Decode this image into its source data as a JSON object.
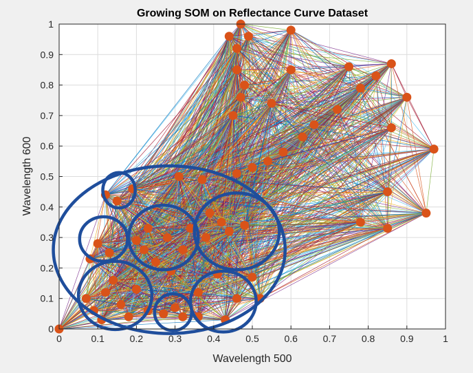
{
  "chart_data": {
    "type": "scatter",
    "title": "Growing SOM on Reflectance Curve Dataset",
    "xlabel": "Wavelength 500",
    "ylabel": "Wavelength 600",
    "xlim": [
      0,
      1
    ],
    "ylim": [
      0,
      1
    ],
    "xticks": [
      "0",
      "0.1",
      "0.2",
      "0.3",
      "0.4",
      "0.5",
      "0.6",
      "0.7",
      "0.8",
      "0.9",
      "1"
    ],
    "yticks": [
      "0",
      "0.1",
      "0.2",
      "0.3",
      "0.4",
      "0.5",
      "0.6",
      "0.7",
      "0.8",
      "0.9",
      "1"
    ],
    "grid": true,
    "marker_color": "#d95319",
    "highlight_color": "#1f4e9c",
    "series": [
      {
        "points": [
          [
            0.0,
            0.0
          ],
          [
            0.47,
            1.0
          ],
          [
            0.44,
            0.96
          ],
          [
            0.49,
            0.96
          ],
          [
            0.6,
            0.98
          ],
          [
            0.46,
            0.92
          ],
          [
            0.46,
            0.85
          ],
          [
            0.48,
            0.8
          ],
          [
            0.47,
            0.76
          ],
          [
            0.6,
            0.85
          ],
          [
            0.75,
            0.86
          ],
          [
            0.82,
            0.83
          ],
          [
            0.86,
            0.87
          ],
          [
            0.9,
            0.76
          ],
          [
            0.78,
            0.79
          ],
          [
            0.72,
            0.72
          ],
          [
            0.66,
            0.67
          ],
          [
            0.63,
            0.63
          ],
          [
            0.58,
            0.58
          ],
          [
            0.54,
            0.55
          ],
          [
            0.5,
            0.53
          ],
          [
            0.46,
            0.51
          ],
          [
            0.97,
            0.59
          ],
          [
            0.86,
            0.66
          ],
          [
            0.85,
            0.45
          ],
          [
            0.95,
            0.38
          ],
          [
            0.85,
            0.33
          ],
          [
            0.78,
            0.35
          ],
          [
            0.55,
            0.74
          ],
          [
            0.45,
            0.7
          ],
          [
            0.37,
            0.49
          ],
          [
            0.31,
            0.5
          ],
          [
            0.19,
            0.46
          ],
          [
            0.12,
            0.44
          ],
          [
            0.15,
            0.42
          ],
          [
            0.1,
            0.28
          ],
          [
            0.13,
            0.25
          ],
          [
            0.08,
            0.23
          ],
          [
            0.23,
            0.33
          ],
          [
            0.28,
            0.3
          ],
          [
            0.2,
            0.29
          ],
          [
            0.25,
            0.22
          ],
          [
            0.32,
            0.26
          ],
          [
            0.39,
            0.38
          ],
          [
            0.42,
            0.35
          ],
          [
            0.44,
            0.32
          ],
          [
            0.38,
            0.3
          ],
          [
            0.48,
            0.34
          ],
          [
            0.41,
            0.18
          ],
          [
            0.46,
            0.1
          ],
          [
            0.36,
            0.12
          ],
          [
            0.3,
            0.07
          ],
          [
            0.27,
            0.05
          ],
          [
            0.32,
            0.04
          ],
          [
            0.07,
            0.1
          ],
          [
            0.12,
            0.12
          ],
          [
            0.16,
            0.08
          ],
          [
            0.2,
            0.13
          ],
          [
            0.14,
            0.16
          ],
          [
            0.09,
            0.06
          ],
          [
            0.11,
            0.03
          ],
          [
            0.18,
            0.04
          ],
          [
            0.23,
            0.06
          ],
          [
            0.5,
            0.17
          ],
          [
            0.52,
            0.1
          ],
          [
            0.36,
            0.04
          ],
          [
            0.43,
            0.03
          ],
          [
            0.29,
            0.19
          ],
          [
            0.34,
            0.33
          ],
          [
            0.22,
            0.26
          ]
        ]
      }
    ],
    "annotations": {
      "circles": [
        {
          "cx": 0.285,
          "cy": 0.26,
          "rx": 0.3,
          "ry": 0.275
        },
        {
          "cx": 0.155,
          "cy": 0.455,
          "rx": 0.042,
          "ry": 0.058
        },
        {
          "cx": 0.115,
          "cy": 0.295,
          "rx": 0.062,
          "ry": 0.073
        },
        {
          "cx": 0.27,
          "cy": 0.3,
          "rx": 0.09,
          "ry": 0.106
        },
        {
          "cx": 0.46,
          "cy": 0.32,
          "rx": 0.11,
          "ry": 0.126
        },
        {
          "cx": 0.145,
          "cy": 0.11,
          "rx": 0.095,
          "ry": 0.112
        },
        {
          "cx": 0.295,
          "cy": 0.055,
          "rx": 0.048,
          "ry": 0.06
        },
        {
          "cx": 0.425,
          "cy": 0.09,
          "rx": 0.085,
          "ry": 0.1
        }
      ]
    }
  }
}
